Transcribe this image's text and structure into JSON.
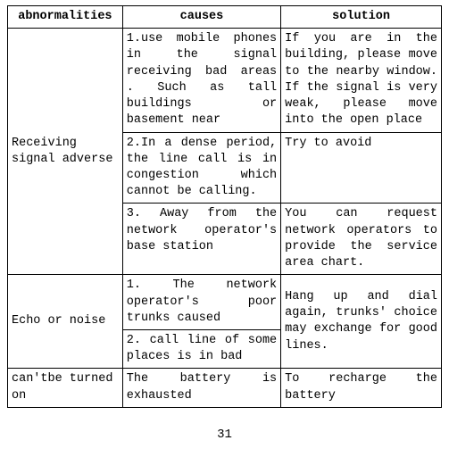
{
  "table": {
    "headers": [
      "abnormalities",
      "causes",
      "solution"
    ],
    "rows": [
      {
        "abnorm": "Receiving signal adverse",
        "cause": "1.use mobile phones in the signal receiving bad areas . Such as tall buildings or basement near",
        "sol": "If you are in the building, please move to the nearby window. If the signal is very weak, please move into the open place"
      },
      {
        "cause": "2.In a dense period, the line call is in congestion which cannot be calling.",
        "sol": "Try to avoid"
      },
      {
        "cause": "3. Away from the network operator's base station",
        "sol": "You can request network operators to provide the service area chart."
      },
      {
        "abnorm": "Echo or noise",
        "cause": "1. The network operator's poor trunks caused",
        "sol": "Hang up and dial again, trunks' choice may exchange for good lines."
      },
      {
        "cause": "2. call line of some places is in bad"
      },
      {
        "abnorm": "can'tbe turned on",
        "cause": "The battery is exhausted",
        "sol": "To recharge the battery"
      }
    ]
  },
  "pageNumber": "31",
  "colors": {
    "background": "#ffffff",
    "text": "#000000",
    "border": "#000000"
  }
}
